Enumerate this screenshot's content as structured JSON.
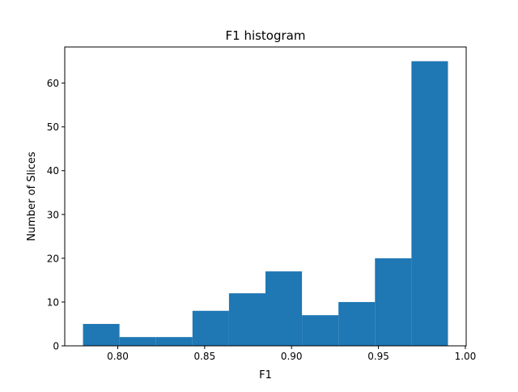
{
  "chart_data": {
    "type": "bar",
    "title": "F1 histogram",
    "xlabel": "F1",
    "ylabel": "Number of Slices",
    "bins": [
      {
        "start": 0.78,
        "end": 0.801,
        "count": 5
      },
      {
        "start": 0.801,
        "end": 0.822,
        "count": 2
      },
      {
        "start": 0.822,
        "end": 0.843,
        "count": 2
      },
      {
        "start": 0.843,
        "end": 0.864,
        "count": 8
      },
      {
        "start": 0.864,
        "end": 0.885,
        "count": 12
      },
      {
        "start": 0.885,
        "end": 0.906,
        "count": 17
      },
      {
        "start": 0.906,
        "end": 0.927,
        "count": 7
      },
      {
        "start": 0.927,
        "end": 0.948,
        "count": 10
      },
      {
        "start": 0.948,
        "end": 0.969,
        "count": 20
      },
      {
        "start": 0.969,
        "end": 0.99,
        "count": 65
      }
    ],
    "xlim": [
      0.7695,
      1.0005
    ],
    "ylim": [
      0,
      68.25
    ],
    "xticks": [
      0.8,
      0.85,
      0.9,
      0.95,
      1.0
    ],
    "xtick_labels": [
      "0.80",
      "0.85",
      "0.90",
      "0.95",
      "1.00"
    ],
    "yticks": [
      0,
      10,
      20,
      30,
      40,
      50,
      60
    ],
    "ytick_labels": [
      "0",
      "10",
      "20",
      "30",
      "40",
      "50",
      "60"
    ],
    "bar_color": "#1f77b4",
    "grid": false,
    "legend": "none"
  }
}
